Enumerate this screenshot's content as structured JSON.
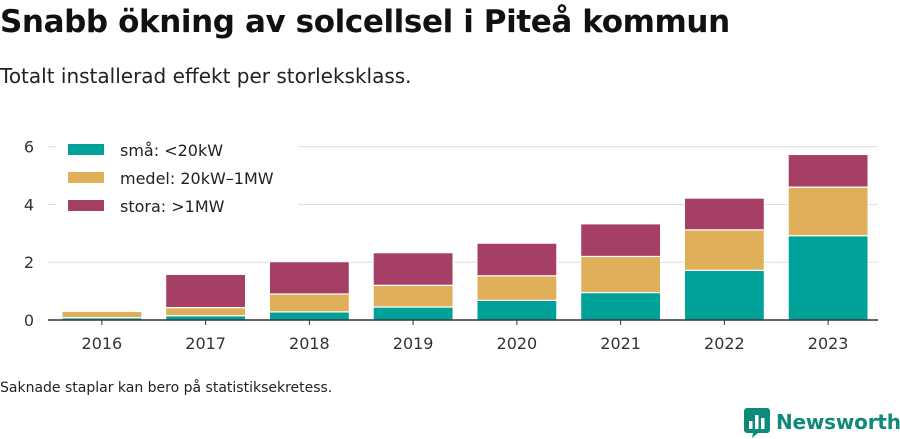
{
  "title": "Snabb ökning av solcellsel i Piteå kommun",
  "subtitle": "Totalt installerad effekt per storleksklass.",
  "note": "Saknade staplar kan bero på statistiksekretess.",
  "brand": {
    "name": "Newsworthy",
    "color": "#0f8a7a",
    "icon": "bar-chart-logo-icon"
  },
  "colors": {
    "grid": "#dddddd",
    "axis": "#333333",
    "text": "#333333"
  },
  "chart_data": {
    "type": "bar",
    "stacked": true,
    "categories": [
      "2016",
      "2017",
      "2018",
      "2019",
      "2020",
      "2021",
      "2022",
      "2023"
    ],
    "series": [
      {
        "name": "små: <20kW",
        "color": "#00a199",
        "values": [
          0.08,
          0.15,
          0.28,
          0.45,
          0.68,
          0.95,
          1.72,
          2.92
        ]
      },
      {
        "name": "medel: 20kW–1MW",
        "color": "#dfaf5a",
        "values": [
          0.22,
          0.28,
          0.62,
          0.75,
          0.85,
          1.25,
          1.4,
          1.68
        ]
      },
      {
        "name": "stora: >1MW",
        "color": "#a53f66",
        "values": [
          0,
          1.15,
          1.12,
          1.13,
          1.13,
          1.13,
          1.1,
          1.13
        ]
      }
    ],
    "yticks": [
      0,
      2,
      4,
      6
    ],
    "ylim": [
      0,
      6.3
    ],
    "grid": true,
    "legend_position": "top-left"
  }
}
